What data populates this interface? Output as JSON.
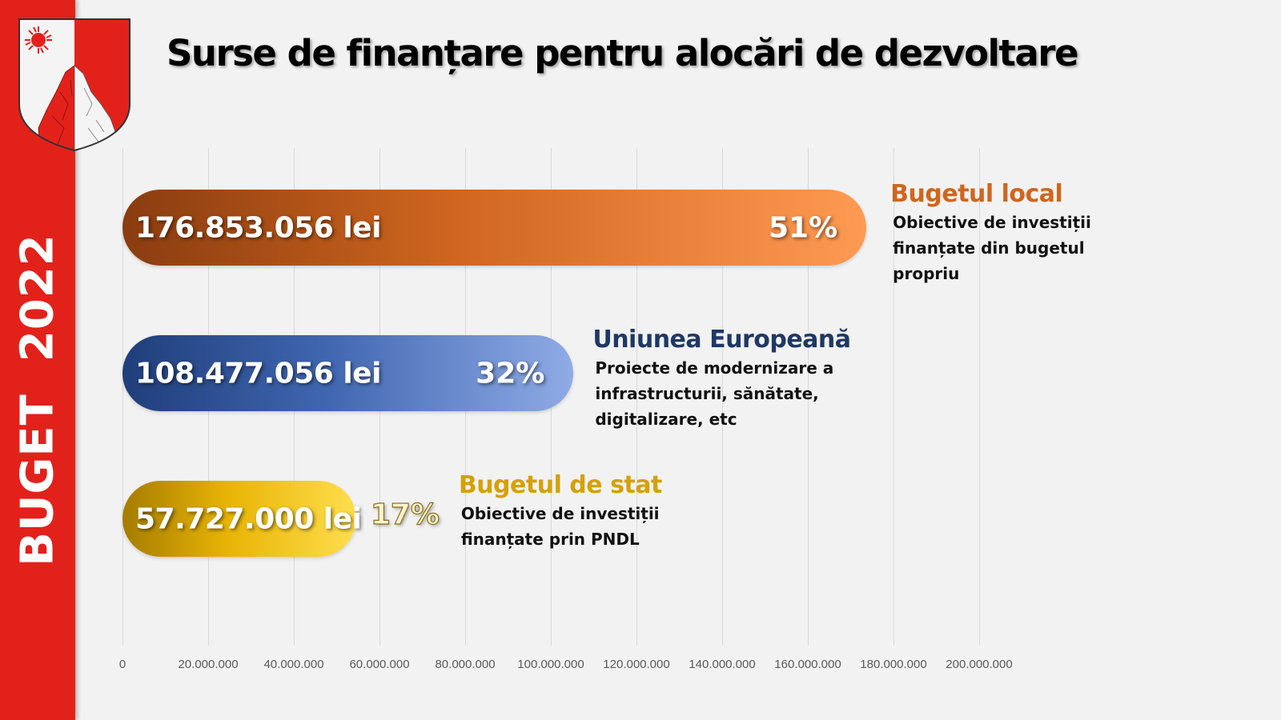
{
  "sidebar": {
    "word1": "BUGET",
    "word2": "2022",
    "crest_icon": "county-coat-of-arms-icon"
  },
  "title": "Surse de finanțare pentru alocări de dezvoltare",
  "colors": {
    "sidebar": "#e3211b",
    "background": "#f2f2f2",
    "local_title": "#d0661f",
    "eu_title": "#1f3864",
    "stat_title": "#d4a106"
  },
  "chart_data": {
    "type": "bar",
    "orientation": "horizontal",
    "title": "Surse de finanțare pentru alocări de dezvoltare",
    "xlabel": "",
    "ylabel": "",
    "xlim": [
      0,
      200000000
    ],
    "grid": true,
    "x_ticks": [
      "0",
      "20.000.000",
      "40.000.000",
      "60.000.000",
      "80.000.000",
      "100.000.000",
      "120.000.000",
      "140.000.000",
      "160.000.000",
      "180.000.000",
      "200.000.000"
    ],
    "x_tick_values": [
      0,
      20000000,
      40000000,
      60000000,
      80000000,
      100000000,
      120000000,
      140000000,
      160000000,
      180000000,
      200000000
    ],
    "categories": [
      "Bugetul local",
      "Uniunea Europeană",
      "Bugetul de stat"
    ],
    "values": [
      176853056,
      108477056,
      57727000
    ],
    "value_labels": [
      "176.853.056 lei",
      "108.477.056 lei",
      "57.727.000 lei"
    ],
    "percent_labels": [
      "51%",
      "32%",
      "17%"
    ],
    "descriptions": [
      "Obiective de investiții finanțate din bugetul propriu",
      "Proiecte de modernizare a infrastructurii, sănătate, digitalizare, etc",
      "Obiective de investiții finanțate prin PNDL"
    ],
    "description_lines": [
      [
        "Obiective de investiții",
        "finanțate din bugetul",
        "propriu"
      ],
      [
        "Proiecte de modernizare a",
        "infrastructurii, sănătate,",
        "digitalizare, etc"
      ],
      [
        "Obiective de investiții",
        "finanțate prin PNDL"
      ]
    ],
    "series_colors": [
      [
        "#8a3c10",
        "#d0661f",
        "#ff9a52"
      ],
      [
        "#1f3e7a",
        "#4066b0",
        "#8fabe6"
      ],
      [
        "#a67c00",
        "#e8b406",
        "#ffde4d"
      ]
    ]
  }
}
